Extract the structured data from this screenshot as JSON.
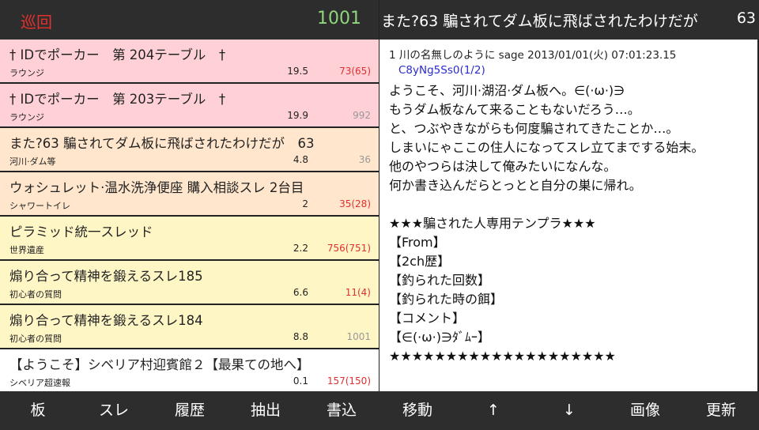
{
  "header": {
    "left_title": "巡回",
    "count": "1001",
    "thread_title": "また?63 騙されてダム板に飛ばされたわけだが",
    "thread_num": "63"
  },
  "colors": {
    "pink": "#ffd1d6",
    "peach": "#ffe6cc",
    "yellow": "#fff6c6",
    "white": "#ffffff",
    "red_count": "#e03030",
    "gray_count": "#999999"
  },
  "threads": [
    {
      "title": "† IDでポーカー　第 204テーブル　†",
      "board": "ラウンジ",
      "speed": "19.5",
      "count": "73(65)",
      "color": "pink",
      "count_new": true
    },
    {
      "title": "† IDでポーカー　第 203テーブル　†",
      "board": "ラウンジ",
      "speed": "19.9",
      "count": "992",
      "color": "pink",
      "count_new": false
    },
    {
      "title": "また?63 騙されてダム板に飛ばされたわけだが　63",
      "board": "河川·ダム等",
      "speed": "4.8",
      "count": "36",
      "color": "peach",
      "count_new": false
    },
    {
      "title": "ウォシュレット·温水洗浄便座 購入相談スレ 2台目",
      "board": "シャワートイレ",
      "speed": "2",
      "count": "35(28)",
      "color": "peach",
      "count_new": true
    },
    {
      "title": "ピラミッド統一スレッド",
      "board": "世界遺産",
      "speed": "2.2",
      "count": "756(751)",
      "color": "yellow",
      "count_new": true
    },
    {
      "title": "煽り合って精神を鍛えるスレ185",
      "board": "初心者の質問",
      "speed": "6.6",
      "count": "11(4)",
      "color": "yellow",
      "count_new": true
    },
    {
      "title": "煽り合って精神を鍛えるスレ184",
      "board": "初心者の質問",
      "speed": "8.8",
      "count": "1001",
      "color": "yellow",
      "count_new": false
    },
    {
      "title": "【ようこそ】シベリア村迎賓館２【最果ての地へ】",
      "board": "シベリア超速報",
      "speed": "0.1",
      "count": "157(150)",
      "color": "white",
      "count_new": true
    }
  ],
  "post": {
    "meta": "1 川の名無しのように sage 2013/01/01(火) 07:01:23.15",
    "id": "C8yNg5Ss0(1/2)",
    "body": "ようこそ、河川·湖沼·ダム板へ。∈(·ω·)∋\nもうダム板なんて来ることもないだろう…。\nと、つぶやきながらも何度騙されてきたことか…。\nしまいにゃここの住人になってスレ立てまでする始末。\n他のやつらは決して俺みたいになんな。\n何か書き込んだらとっとと自分の巣に帰れ。\n\n★★★騙された人専用テンプラ★★★\n【From】\n【2ch歴】\n【釣られた回数】\n【釣られた時の餌】\n【コメント】\n【∈(·ω·)∋ﾀﾞﾑｰ】\n★★★★★★★★★★★★★★★★★★★★"
  },
  "toolbar": [
    "板",
    "スレ",
    "履歴",
    "抽出",
    "書込",
    "移動",
    "↑",
    "↓",
    "画像",
    "更新"
  ]
}
